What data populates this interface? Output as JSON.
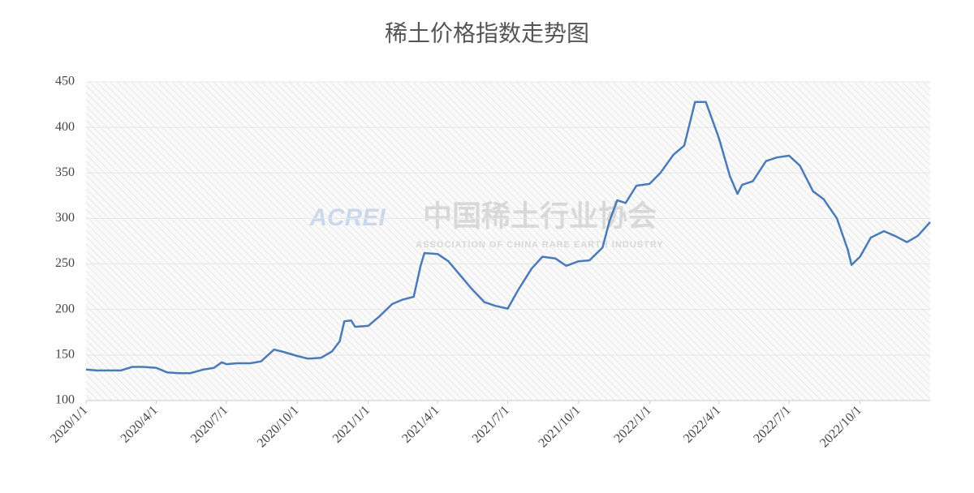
{
  "chart_data": {
    "type": "line",
    "title": "稀土价格指数走势图",
    "watermark": [
      "ACREI",
      "中国稀土行业协会",
      "ASSOCIATION OF CHINA RARE EARTH INDUSTRY"
    ],
    "x": [
      "2020/1/1",
      "2020/1/15",
      "2020/2/1",
      "2020/2/15",
      "2020/3/1",
      "2020/3/15",
      "2020/4/1",
      "2020/4/15",
      "2020/5/1",
      "2020/5/15",
      "2020/6/1",
      "2020/6/15",
      "2020/6/25",
      "2020/7/1",
      "2020/7/15",
      "2020/8/1",
      "2020/8/15",
      "2020/9/1",
      "2020/9/15",
      "2020/10/1",
      "2020/10/15",
      "2020/11/1",
      "2020/11/15",
      "2020/11/25",
      "2020/12/1",
      "2020/12/10",
      "2020/12/15",
      "2021/1/1",
      "2021/1/15",
      "2021/2/1",
      "2021/2/15",
      "2021/3/1",
      "2021/3/10",
      "2021/3/15",
      "2021/4/1",
      "2021/4/15",
      "2021/5/1",
      "2021/5/15",
      "2021/6/1",
      "2021/6/15",
      "2021/7/1",
      "2021/7/15",
      "2021/8/1",
      "2021/8/15",
      "2021/9/1",
      "2021/9/15",
      "2021/10/1",
      "2021/10/15",
      "2021/11/1",
      "2021/11/10",
      "2021/11/20",
      "2021/12/1",
      "2021/12/15",
      "2022/1/1",
      "2022/1/15",
      "2022/2/1",
      "2022/2/15",
      "2022/3/1",
      "2022/3/15",
      "2022/4/1",
      "2022/4/15",
      "2022/4/25",
      "2022/5/1",
      "2022/5/15",
      "2022/6/1",
      "2022/6/15",
      "2022/7/1",
      "2022/7/15",
      "2022/8/1",
      "2022/8/15",
      "2022/9/1",
      "2022/9/15",
      "2022/9/20",
      "2022/10/1",
      "2022/10/15",
      "2022/11/1",
      "2022/11/15",
      "2022/12/1",
      "2022/12/15",
      "2022/12/31"
    ],
    "series": [
      {
        "color": "#4a7ab8",
        "values": [
          134,
          133,
          133,
          133,
          137,
          137,
          136,
          131,
          130,
          130,
          134,
          136,
          142,
          140,
          141,
          141,
          143,
          156,
          153,
          149,
          146,
          147,
          154,
          165,
          187,
          188,
          181,
          182,
          192,
          206,
          211,
          214,
          248,
          262,
          261,
          253,
          237,
          223,
          208,
          204,
          201,
          222,
          245,
          258,
          256,
          248,
          253,
          254,
          268,
          297,
          320,
          317,
          336,
          338,
          350,
          370,
          380,
          428,
          428,
          388,
          347,
          327,
          337,
          341,
          363,
          367,
          369,
          358,
          330,
          321,
          300,
          266,
          249,
          258,
          279,
          286,
          281,
          274,
          281,
          296
        ]
      }
    ],
    "xlim": [
      "2020/1/1",
      "2022/12/31"
    ],
    "xticks": [
      "2020/1/1",
      "2020/4/1",
      "2020/7/1",
      "2020/10/1",
      "2021/1/1",
      "2021/4/1",
      "2021/7/1",
      "2021/10/1",
      "2022/1/1",
      "2022/4/1",
      "2022/7/1",
      "2022/10/1"
    ],
    "ylim": [
      100,
      450
    ],
    "yticks": [
      100,
      150,
      200,
      250,
      300,
      350,
      400,
      450
    ],
    "grid": true
  }
}
